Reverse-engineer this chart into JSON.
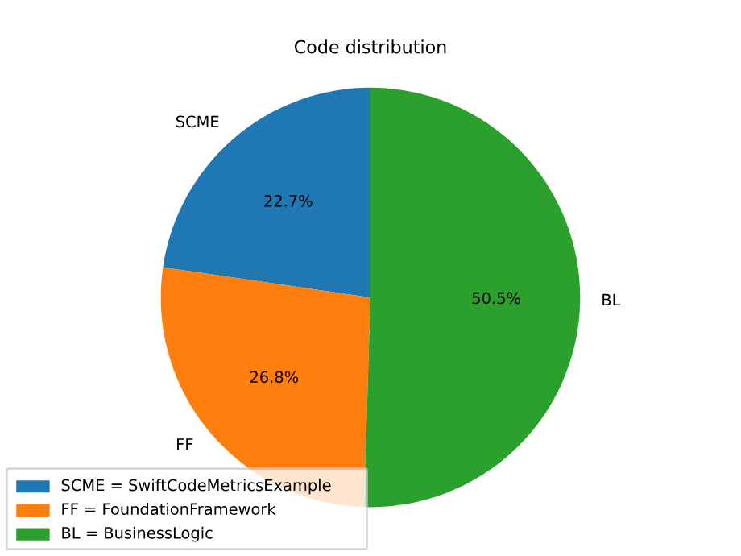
{
  "chart_data": {
    "type": "pie",
    "title": "Code distribution",
    "categories": [
      "SCME",
      "FF",
      "BL"
    ],
    "values": [
      22.7,
      26.8,
      50.5
    ],
    "colors": [
      "#1f77b4",
      "#ff7f0e",
      "#2ca02c"
    ],
    "value_labels": [
      "22.7%",
      "26.8%",
      "50.5%"
    ],
    "annotations": [
      "SCME = SwiftCodeMetricsExample",
      "FF = FoundationFramework",
      "BL = BusinessLogic"
    ]
  }
}
